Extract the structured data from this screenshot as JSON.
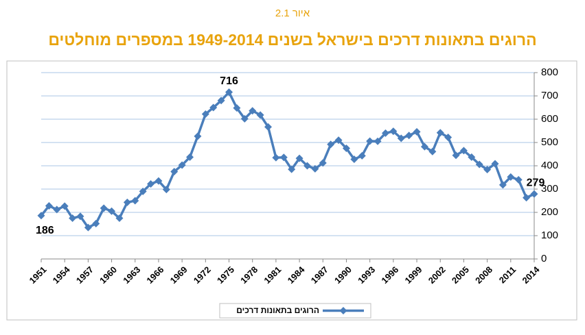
{
  "chart_data": {
    "type": "line",
    "figure_label": "איור 2.1",
    "title": "הרוגים בתאונות דרכים בישראל בשנים 1949-2014 במספרים מוחלטים",
    "x": [
      1951,
      1952,
      1953,
      1954,
      1955,
      1956,
      1957,
      1958,
      1959,
      1960,
      1961,
      1962,
      1963,
      1964,
      1965,
      1966,
      1967,
      1968,
      1969,
      1970,
      1971,
      1972,
      1973,
      1974,
      1975,
      1976,
      1977,
      1978,
      1979,
      1980,
      1981,
      1982,
      1983,
      1984,
      1985,
      1986,
      1987,
      1988,
      1989,
      1990,
      1991,
      1992,
      1993,
      1994,
      1995,
      1996,
      1997,
      1998,
      1999,
      2000,
      2001,
      2002,
      2003,
      2004,
      2005,
      2006,
      2007,
      2008,
      2009,
      2010,
      2011,
      2012,
      2013,
      2014
    ],
    "series": [
      {
        "name": "הרוגים בתאונות דרכים",
        "color": "#4a7ebb",
        "values": [
          186,
          228,
          212,
          227,
          175,
          183,
          135,
          152,
          218,
          205,
          175,
          243,
          250,
          290,
          322,
          335,
          298,
          375,
          403,
          437,
          527,
          622,
          650,
          680,
          716,
          648,
          602,
          636,
          618,
          567,
          435,
          436,
          385,
          432,
          400,
          387,
          412,
          492,
          510,
          475,
          428,
          443,
          506,
          505,
          540,
          548,
          518,
          530,
          546,
          482,
          461,
          542,
          522,
          445,
          465,
          437,
          406,
          384,
          409,
          318,
          352,
          340,
          263,
          279
        ]
      }
    ],
    "data_labels_at": [
      0,
      24,
      63
    ],
    "xlim": [
      1951,
      2014
    ],
    "xticks": [
      1951,
      1954,
      1957,
      1960,
      1963,
      1966,
      1969,
      1972,
      1975,
      1978,
      1981,
      1984,
      1987,
      1990,
      1993,
      1996,
      1999,
      2002,
      2005,
      2008,
      2011,
      2014
    ],
    "ylim": [
      0,
      800
    ],
    "yticks": [
      0,
      100,
      200,
      300,
      400,
      500,
      600,
      700,
      800
    ],
    "y_axis_side": "right",
    "grid": true,
    "legend": "bottom"
  }
}
